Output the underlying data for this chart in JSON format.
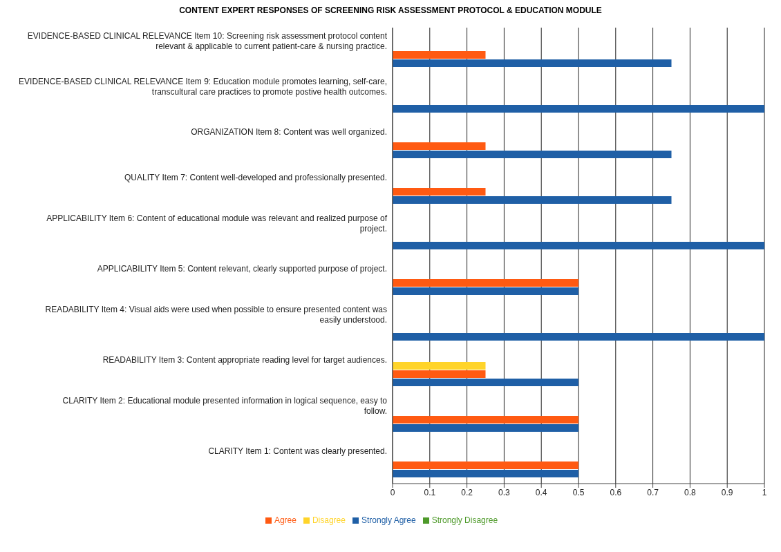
{
  "chart_data": {
    "type": "bar",
    "orientation": "horizontal",
    "title": "CONTENT EXPERT RESPONSES  OF SCREENING RISK ASSESSMENT PROTOCOL & EDUCATION MODULE",
    "categories": [
      "EVIDENCE-BASED CLINICAL RELEVANCE Item 10: Screening risk assessment protocol content relevant & applicable to current patient-care & nursing practice.",
      "EVIDENCE-BASED CLINICAL RELEVANCE Item 9: Education module promotes learning, self-care, transcultural care practices to promote postive health outcomes.",
      "ORGANIZATION Item 8: Content was well organized.",
      "QUALITY Item 7: Content well-developed and professionally presented.",
      "APPLICABILITY Item 6: Content of educational module was relevant and realized purpose of project.",
      "APPLICABILITY Item 5: Content relevant, clearly supported purpose of project.",
      "READABILITY Item 4: Visual aids were used when possible to ensure presented content was easily understood.",
      "READABILITY Item 3: Content appropriate reading level for target audiences.",
      "CLARITY Item 2: Educational module presented information in logical sequence, easy to follow.",
      "CLARITY Item 1: Content was clearly presented."
    ],
    "series": [
      {
        "name": "Strongly Disagree",
        "color": "#4e9a2a",
        "values": [
          0,
          0,
          0,
          0,
          0,
          0,
          0,
          0,
          0,
          0
        ]
      },
      {
        "name": "Disagree",
        "color": "#ffd42a",
        "values": [
          0,
          0,
          0,
          0,
          0,
          0,
          0,
          0.25,
          0,
          0
        ]
      },
      {
        "name": "Agree",
        "color": "#ff5a12",
        "values": [
          0.25,
          0,
          0.25,
          0.25,
          0,
          0.5,
          0,
          0.25,
          0.5,
          0.5
        ]
      },
      {
        "name": "Strongly Agree",
        "color": "#1f5fa6",
        "values": [
          0.75,
          1,
          0.75,
          0.75,
          1,
          0.5,
          1,
          0.5,
          0.5,
          0.5
        ]
      }
    ],
    "xlim": [
      0,
      1
    ],
    "xticks": [
      0,
      0.1,
      0.2,
      0.3,
      0.4,
      0.5,
      0.6,
      0.7,
      0.8,
      0.9,
      1
    ],
    "grid": "x",
    "legend": "bottom"
  }
}
